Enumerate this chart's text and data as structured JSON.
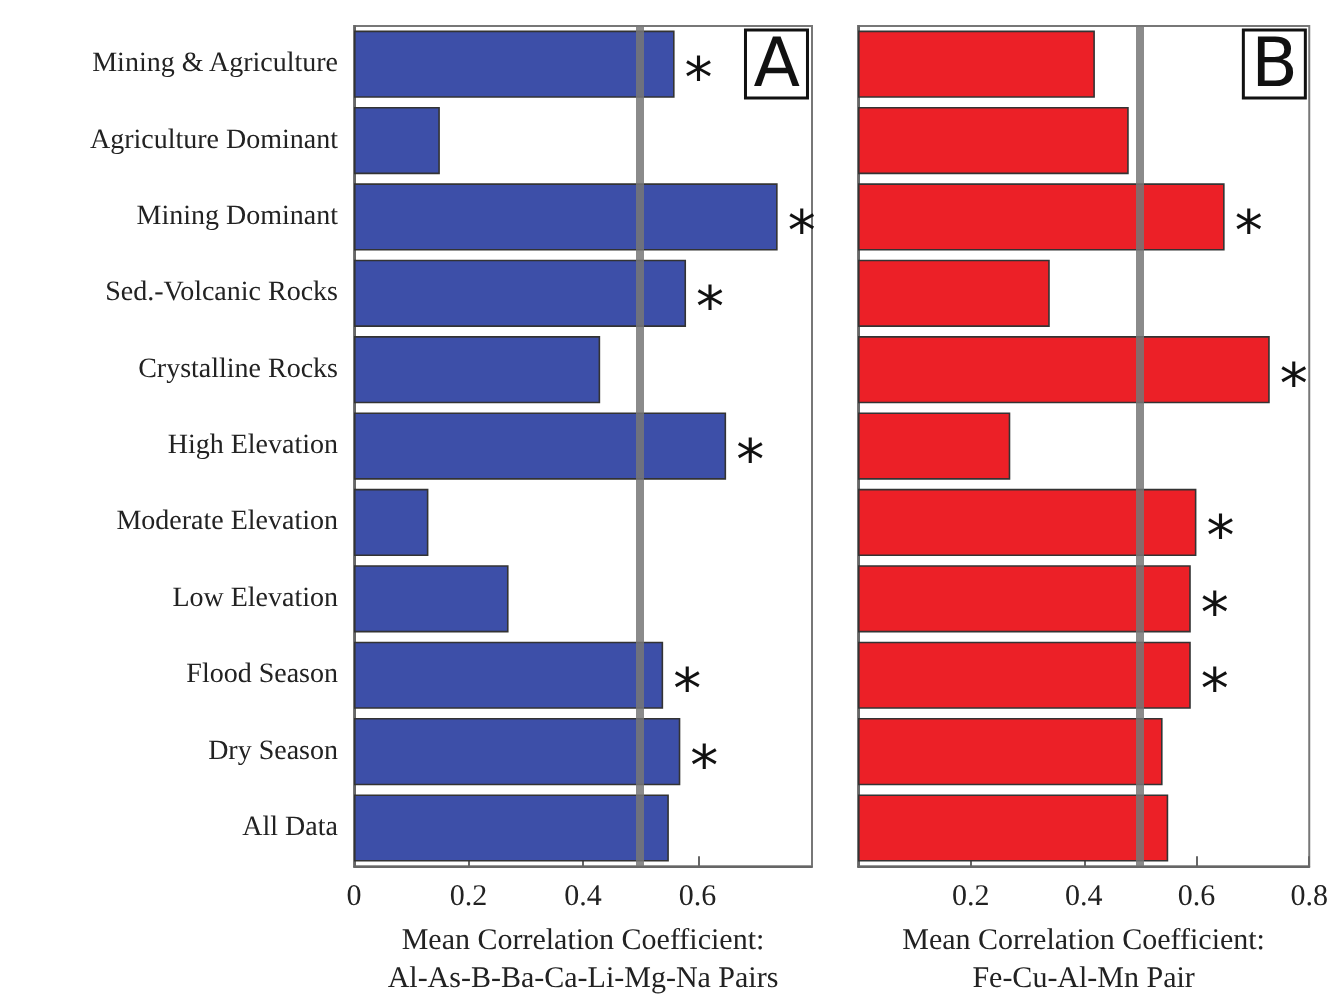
{
  "chart_data": [
    {
      "type": "bar",
      "orientation": "horizontal",
      "title": "A",
      "categories": [
        "Mining & Agriculture",
        "Agriculture Dominant",
        "Mining Dominant",
        "Sed.-Volcanic Rocks",
        "Crystalline Rocks",
        "High Elevation",
        "Moderate Elevation",
        "Low Elevation",
        "Flood Season",
        "Dry Season",
        "All Data"
      ],
      "series": [
        {
          "color": "#3d4fa8",
          "values": [
            0.56,
            0.15,
            0.74,
            0.58,
            0.43,
            0.65,
            0.13,
            0.27,
            0.54,
            0.57,
            0.55
          ]
        }
      ],
      "xlabel": "Mean Correlation Coefficient:\nAl-As-B-Ba-Ca-Li-Mg-Na Pairs",
      "xlim": [
        0,
        0.8
      ],
      "xticks": [
        0,
        0.2,
        0.4,
        0.6
      ],
      "ref_lines": [
        {
          "axis": "x",
          "value": 0.5,
          "color": "#777777"
        }
      ],
      "annotations": [
        {
          "text": "*",
          "x": 0.56,
          "y": "Mining & Agriculture"
        },
        {
          "text": "*",
          "x": 0.74,
          "y": "Mining Dominant"
        },
        {
          "text": "*",
          "x": 0.58,
          "y": "Sed.-Volcanic Rocks"
        },
        {
          "text": "*",
          "x": 0.65,
          "y": "High Elevation"
        },
        {
          "text": "*",
          "x": 0.54,
          "y": "Flood Season"
        },
        {
          "text": "*",
          "x": 0.57,
          "y": "Dry Season"
        }
      ],
      "grid": false
    },
    {
      "type": "bar",
      "orientation": "horizontal",
      "title": "B",
      "categories": [
        "Mining & Agriculture",
        "Agriculture Dominant",
        "Mining Dominant",
        "Sed.-Volcanic Rocks",
        "Crystalline Rocks",
        "High Elevation",
        "Moderate Elevation",
        "Low Elevation",
        "Flood Season",
        "Dry Season",
        "All Data"
      ],
      "series": [
        {
          "color": "#ec2027",
          "values": [
            0.42,
            0.48,
            0.65,
            0.34,
            0.73,
            0.27,
            0.6,
            0.59,
            0.59,
            0.54,
            0.55
          ]
        }
      ],
      "xlabel": "Mean Correlation Coefficient:\nFe-Cu-Al-Mn Pair",
      "xlim": [
        0,
        0.8
      ],
      "xticks": [
        0.2,
        0.4,
        0.6,
        0.8
      ],
      "tick_labels": "x",
      "ref_lines": [
        {
          "axis": "x",
          "value": 0.5,
          "color": "#777777"
        }
      ],
      "annotations": [
        {
          "text": "*",
          "x": 0.65,
          "y": "Mining Dominant"
        },
        {
          "text": "*",
          "x": 0.73,
          "y": "Crystalline Rocks"
        },
        {
          "text": "*",
          "x": 0.6,
          "y": "Moderate Elevation"
        },
        {
          "text": "*",
          "x": 0.59,
          "y": "Low Elevation"
        },
        {
          "text": "*",
          "x": 0.59,
          "y": "Flood Season"
        }
      ],
      "grid": false
    }
  ]
}
